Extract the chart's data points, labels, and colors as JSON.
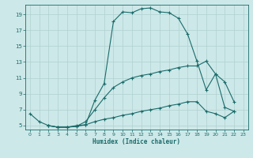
{
  "xlabel": "Humidex (Indice chaleur)",
  "bg_color": "#cde8e8",
  "grid_color": "#b0d0d0",
  "line_color": "#1a6b6b",
  "xlim": [
    -0.5,
    23.5
  ],
  "ylim": [
    4.5,
    20.2
  ],
  "xtick_labels": [
    "0",
    "1",
    "2",
    "3",
    "4",
    "5",
    "6",
    "7",
    "8",
    "9",
    "10",
    "11",
    "12",
    "13",
    "14",
    "15",
    "16",
    "17",
    "18",
    "19",
    "20",
    "21",
    "22",
    "23"
  ],
  "xtick_vals": [
    0,
    1,
    2,
    3,
    4,
    5,
    6,
    7,
    8,
    9,
    10,
    11,
    12,
    13,
    14,
    15,
    16,
    17,
    18,
    19,
    20,
    21,
    22,
    23
  ],
  "ytick_vals": [
    5,
    7,
    9,
    11,
    13,
    15,
    17,
    19
  ],
  "curve1_x": [
    0,
    1,
    2,
    3,
    4,
    5,
    6,
    7,
    8,
    9,
    10,
    11,
    12,
    13,
    14,
    15,
    16,
    17,
    18,
    19,
    20,
    21,
    22
  ],
  "curve1_y": [
    6.5,
    5.5,
    5.0,
    4.8,
    4.8,
    5.0,
    5.1,
    8.2,
    10.3,
    18.1,
    19.3,
    19.2,
    19.7,
    19.8,
    19.3,
    19.2,
    18.5,
    16.5,
    13.1,
    9.5,
    11.5,
    10.5,
    8.0
  ],
  "curve2_x": [
    2,
    3,
    4,
    5,
    6,
    7,
    8,
    9,
    10,
    11,
    12,
    13,
    14,
    15,
    16,
    17,
    18,
    19,
    20,
    21,
    22
  ],
  "curve2_y": [
    5.0,
    4.8,
    4.8,
    4.9,
    5.5,
    7.0,
    8.5,
    9.8,
    10.5,
    11.0,
    11.3,
    11.5,
    11.8,
    12.0,
    12.3,
    12.5,
    12.5,
    13.1,
    11.5,
    7.3,
    6.8
  ],
  "curve3_x": [
    2,
    3,
    4,
    5,
    6,
    7,
    8,
    9,
    10,
    11,
    12,
    13,
    14,
    15,
    16,
    17,
    18,
    19,
    20,
    21,
    22
  ],
  "curve3_y": [
    5.0,
    4.8,
    4.8,
    4.9,
    5.1,
    5.5,
    5.8,
    6.0,
    6.3,
    6.5,
    6.8,
    7.0,
    7.2,
    7.5,
    7.7,
    8.0,
    8.0,
    6.8,
    6.5,
    6.0,
    6.8
  ]
}
